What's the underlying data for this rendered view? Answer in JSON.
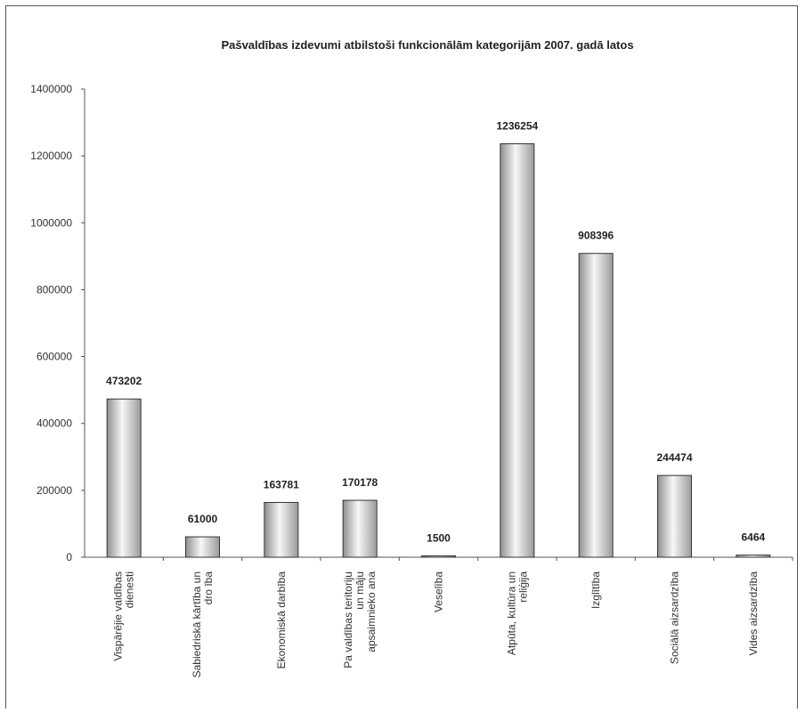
{
  "chart_data": {
    "type": "bar",
    "title": "Pašvaldības izdevumi atbilstoši funkcionālām kategorijām 2007. gadā latos",
    "categories": [
      [
        "Vispārējie valdības",
        "dienesti"
      ],
      [
        "Sabiedriskā kārtība un",
        "dro ība"
      ],
      [
        "Ekonomiskā darbība"
      ],
      [
        "Pa valdības teritoriju",
        "un māju",
        "apsaimnieko ana"
      ],
      [
        "Veselība"
      ],
      [
        "Atpūta, kultūra un",
        "reliģija"
      ],
      [
        "Izglītība"
      ],
      [
        "Sociālā aizsardzība"
      ],
      [
        "Vides aizsardzība"
      ]
    ],
    "values": [
      473202,
      61000,
      163781,
      170178,
      1500,
      1236254,
      908396,
      244474,
      6464
    ],
    "value_labels": [
      "473202",
      "61000",
      "163781",
      "170178",
      "1500",
      "1236254",
      "908396",
      "244474",
      "6464"
    ],
    "ylim": [
      0,
      1400000
    ],
    "yticks": [
      "0",
      "200000",
      "400000",
      "600000",
      "800000",
      "1000000",
      "1200000",
      "1400000"
    ],
    "ytick_values": [
      0,
      200000,
      400000,
      600000,
      800000,
      1000000,
      1200000,
      1400000
    ],
    "grid": false,
    "legend": "none"
  }
}
